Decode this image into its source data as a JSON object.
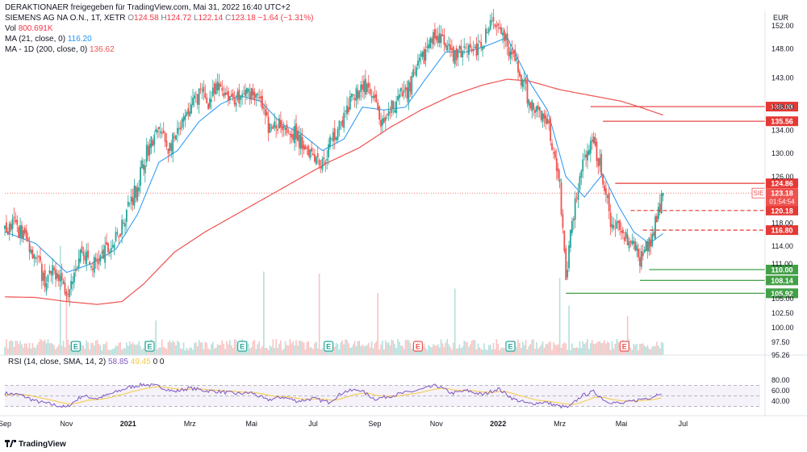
{
  "header": {
    "line1": "DERAKTIONAER freigegeben für TradingView.com, Mai 31, 2022 16:40 UTC+2",
    "line2_prefix": "SIEMENS AG NA O.N., 1T, XETR",
    "ohlc": {
      "O": "124.58",
      "H": "124.72",
      "L": "122.14",
      "C": "123.18",
      "chg": "−1.64 (−1.31%)"
    },
    "vol_label": "Vol",
    "vol_value": "800.691K",
    "ma1_label": "MA (21, close, 0)",
    "ma1_value": "116.20",
    "ma2_label": "MA - 1D (200, close, 0)",
    "ma2_value": "136.62"
  },
  "rsi_header": {
    "label": "RSI (14, close, SMA, 14, 2)",
    "value1": "58.85",
    "value2": "49.45",
    "value3": "0",
    "value4": "0"
  },
  "footer": {
    "brand": "TradingView"
  },
  "colors": {
    "up": "#26a69a",
    "down": "#ef5350",
    "ma21": "#2196f3",
    "ma200": "#ef5350",
    "rsi": "#7e57c2",
    "rsi_ma": "#f5c842",
    "red_level": "#e53935",
    "green_level": "#43a047"
  },
  "chart_data": {
    "type": "candlestick",
    "currency": "EUR",
    "price_axis_ticks": [
      152.0,
      148.0,
      143.0,
      138.0,
      134.0,
      130.0,
      126.0,
      118.0,
      114.0,
      111.0,
      105.0,
      102.5,
      100.0,
      97.5,
      95.26
    ],
    "time_axis_labels": [
      "Sep",
      "Nov",
      "2021",
      "Mrz",
      "Mai",
      "Jul",
      "Sep",
      "Nov",
      "2022",
      "Mrz",
      "Mai",
      "Jul"
    ],
    "time_axis_month_index": [
      0,
      2,
      4,
      6,
      8,
      10,
      12,
      14,
      16,
      18,
      20,
      22
    ],
    "price_anchors": [
      {
        "m": 0.0,
        "p": 116.5
      },
      {
        "m": 0.3,
        "p": 117.8
      },
      {
        "m": 0.6,
        "p": 116.0
      },
      {
        "m": 1.0,
        "p": 112.5
      },
      {
        "m": 1.3,
        "p": 108.0
      },
      {
        "m": 1.7,
        "p": 110.0
      },
      {
        "m": 2.0,
        "p": 106.5
      },
      {
        "m": 2.2,
        "p": 109.5
      },
      {
        "m": 2.5,
        "p": 113.5
      },
      {
        "m": 2.8,
        "p": 110.5
      },
      {
        "m": 3.2,
        "p": 112.5
      },
      {
        "m": 3.6,
        "p": 115.0
      },
      {
        "m": 4.0,
        "p": 121.0
      },
      {
        "m": 4.3,
        "p": 124.5
      },
      {
        "m": 4.6,
        "p": 130.5
      },
      {
        "m": 5.0,
        "p": 134.0
      },
      {
        "m": 5.3,
        "p": 131.0
      },
      {
        "m": 5.6,
        "p": 133.0
      },
      {
        "m": 6.0,
        "p": 137.5
      },
      {
        "m": 6.3,
        "p": 140.5
      },
      {
        "m": 6.6,
        "p": 139.0
      },
      {
        "m": 7.0,
        "p": 141.5
      },
      {
        "m": 7.3,
        "p": 140.0
      },
      {
        "m": 7.6,
        "p": 139.5
      },
      {
        "m": 8.0,
        "p": 141.0
      },
      {
        "m": 8.3,
        "p": 138.5
      },
      {
        "m": 8.6,
        "p": 134.0
      },
      {
        "m": 9.0,
        "p": 135.5
      },
      {
        "m": 9.3,
        "p": 134.0
      },
      {
        "m": 9.6,
        "p": 132.0
      },
      {
        "m": 10.0,
        "p": 130.5
      },
      {
        "m": 10.3,
        "p": 128.0
      },
      {
        "m": 10.6,
        "p": 132.5
      },
      {
        "m": 11.0,
        "p": 136.0
      },
      {
        "m": 11.3,
        "p": 139.5
      },
      {
        "m": 11.6,
        "p": 142.0
      },
      {
        "m": 12.0,
        "p": 138.5
      },
      {
        "m": 12.3,
        "p": 134.0
      },
      {
        "m": 12.6,
        "p": 138.5
      },
      {
        "m": 13.0,
        "p": 140.5
      },
      {
        "m": 13.3,
        "p": 143.5
      },
      {
        "m": 13.6,
        "p": 147.0
      },
      {
        "m": 14.0,
        "p": 151.0
      },
      {
        "m": 14.3,
        "p": 148.0
      },
      {
        "m": 14.6,
        "p": 146.5
      },
      {
        "m": 15.0,
        "p": 149.0
      },
      {
        "m": 15.3,
        "p": 147.5
      },
      {
        "m": 15.6,
        "p": 150.5
      },
      {
        "m": 16.0,
        "p": 153.5
      },
      {
        "m": 16.3,
        "p": 149.0
      },
      {
        "m": 16.6,
        "p": 145.0
      },
      {
        "m": 17.0,
        "p": 139.0
      },
      {
        "m": 17.3,
        "p": 137.5
      },
      {
        "m": 17.6,
        "p": 136.0
      },
      {
        "m": 18.0,
        "p": 125.0
      },
      {
        "m": 18.2,
        "p": 108.5
      },
      {
        "m": 18.5,
        "p": 122.0
      },
      {
        "m": 18.8,
        "p": 129.0
      },
      {
        "m": 19.1,
        "p": 131.5
      },
      {
        "m": 19.4,
        "p": 126.0
      },
      {
        "m": 19.7,
        "p": 116.5
      },
      {
        "m": 20.0,
        "p": 117.5
      },
      {
        "m": 20.3,
        "p": 114.5
      },
      {
        "m": 20.6,
        "p": 112.0
      },
      {
        "m": 20.9,
        "p": 114.0
      },
      {
        "m": 21.2,
        "p": 120.5
      },
      {
        "m": 21.35,
        "p": 123.18
      }
    ],
    "ma21_anchors": [
      {
        "m": 0.0,
        "p": 116.5
      },
      {
        "m": 1.0,
        "p": 114.5
      },
      {
        "m": 2.0,
        "p": 109.5
      },
      {
        "m": 2.8,
        "p": 111.0
      },
      {
        "m": 3.6,
        "p": 113.5
      },
      {
        "m": 4.3,
        "p": 119.5
      },
      {
        "m": 5.0,
        "p": 128.5
      },
      {
        "m": 5.6,
        "p": 130.5
      },
      {
        "m": 6.3,
        "p": 135.5
      },
      {
        "m": 7.0,
        "p": 138.5
      },
      {
        "m": 7.6,
        "p": 140.0
      },
      {
        "m": 8.3,
        "p": 139.0
      },
      {
        "m": 9.0,
        "p": 135.0
      },
      {
        "m": 9.6,
        "p": 133.5
      },
      {
        "m": 10.3,
        "p": 130.5
      },
      {
        "m": 11.0,
        "p": 132.5
      },
      {
        "m": 11.6,
        "p": 138.0
      },
      {
        "m": 12.3,
        "p": 137.5
      },
      {
        "m": 13.0,
        "p": 138.0
      },
      {
        "m": 13.6,
        "p": 142.5
      },
      {
        "m": 14.3,
        "p": 147.5
      },
      {
        "m": 15.0,
        "p": 147.5
      },
      {
        "m": 15.6,
        "p": 148.5
      },
      {
        "m": 16.3,
        "p": 150.0
      },
      {
        "m": 17.0,
        "p": 142.5
      },
      {
        "m": 17.6,
        "p": 137.5
      },
      {
        "m": 18.2,
        "p": 126.0
      },
      {
        "m": 18.8,
        "p": 122.5
      },
      {
        "m": 19.4,
        "p": 126.5
      },
      {
        "m": 19.9,
        "p": 121.0
      },
      {
        "m": 20.4,
        "p": 116.5
      },
      {
        "m": 20.9,
        "p": 114.5
      },
      {
        "m": 21.35,
        "p": 116.2
      }
    ],
    "ma200_anchors": [
      {
        "m": 0.0,
        "p": 105.3
      },
      {
        "m": 1.0,
        "p": 105.2
      },
      {
        "m": 2.0,
        "p": 104.5
      },
      {
        "m": 3.0,
        "p": 104.0
      },
      {
        "m": 3.8,
        "p": 104.5
      },
      {
        "m": 4.5,
        "p": 107.5
      },
      {
        "m": 5.5,
        "p": 113.0
      },
      {
        "m": 6.5,
        "p": 116.5
      },
      {
        "m": 7.5,
        "p": 119.5
      },
      {
        "m": 8.5,
        "p": 122.5
      },
      {
        "m": 9.5,
        "p": 125.5
      },
      {
        "m": 10.5,
        "p": 128.5
      },
      {
        "m": 11.5,
        "p": 131.0
      },
      {
        "m": 12.5,
        "p": 134.5
      },
      {
        "m": 13.5,
        "p": 137.5
      },
      {
        "m": 14.5,
        "p": 140.0
      },
      {
        "m": 15.5,
        "p": 141.8
      },
      {
        "m": 16.3,
        "p": 142.8
      },
      {
        "m": 17.0,
        "p": 142.5
      },
      {
        "m": 18.0,
        "p": 141.0
      },
      {
        "m": 19.0,
        "p": 140.0
      },
      {
        "m": 20.0,
        "p": 139.0
      },
      {
        "m": 20.6,
        "p": 138.0
      },
      {
        "m": 21.35,
        "p": 136.62
      }
    ],
    "rsi_anchors": [
      {
        "m": 0.0,
        "v": 55
      },
      {
        "m": 0.5,
        "v": 52
      },
      {
        "m": 1.0,
        "v": 40
      },
      {
        "m": 1.5,
        "v": 34
      },
      {
        "m": 2.0,
        "v": 28
      },
      {
        "m": 2.5,
        "v": 50
      },
      {
        "m": 3.0,
        "v": 45
      },
      {
        "m": 3.5,
        "v": 55
      },
      {
        "m": 4.0,
        "v": 66
      },
      {
        "m": 4.5,
        "v": 72
      },
      {
        "m": 5.0,
        "v": 68
      },
      {
        "m": 5.5,
        "v": 58
      },
      {
        "m": 6.0,
        "v": 65
      },
      {
        "m": 6.5,
        "v": 60
      },
      {
        "m": 7.0,
        "v": 58
      },
      {
        "m": 7.5,
        "v": 54
      },
      {
        "m": 8.0,
        "v": 56
      },
      {
        "m": 8.5,
        "v": 42
      },
      {
        "m": 9.0,
        "v": 48
      },
      {
        "m": 9.5,
        "v": 40
      },
      {
        "m": 10.0,
        "v": 45
      },
      {
        "m": 10.5,
        "v": 38
      },
      {
        "m": 11.0,
        "v": 58
      },
      {
        "m": 11.5,
        "v": 62
      },
      {
        "m": 12.0,
        "v": 44
      },
      {
        "m": 12.5,
        "v": 50
      },
      {
        "m": 13.0,
        "v": 56
      },
      {
        "m": 13.5,
        "v": 62
      },
      {
        "m": 14.0,
        "v": 70
      },
      {
        "m": 14.5,
        "v": 55
      },
      {
        "m": 15.0,
        "v": 60
      },
      {
        "m": 15.5,
        "v": 52
      },
      {
        "m": 16.0,
        "v": 64
      },
      {
        "m": 16.5,
        "v": 44
      },
      {
        "m": 17.0,
        "v": 35
      },
      {
        "m": 17.5,
        "v": 38
      },
      {
        "m": 18.0,
        "v": 30
      },
      {
        "m": 18.3,
        "v": 28
      },
      {
        "m": 18.7,
        "v": 50
      },
      {
        "m": 19.1,
        "v": 58
      },
      {
        "m": 19.5,
        "v": 40
      },
      {
        "m": 20.0,
        "v": 35
      },
      {
        "m": 20.5,
        "v": 42
      },
      {
        "m": 21.0,
        "v": 48
      },
      {
        "m": 21.35,
        "v": 58.85
      }
    ],
    "volume_spikes": [
      {
        "m": 1.8,
        "k": 3.2
      },
      {
        "m": 2.0,
        "k": 2.0
      },
      {
        "m": 4.9,
        "k": 2.2
      },
      {
        "m": 8.4,
        "k": 3.2
      },
      {
        "m": 10.2,
        "k": 2.6
      },
      {
        "m": 12.1,
        "k": 2.0
      },
      {
        "m": 14.6,
        "k": 2.0
      },
      {
        "m": 18.0,
        "k": 3.5
      },
      {
        "m": 18.3,
        "k": 2.6
      },
      {
        "m": 20.2,
        "k": 2.2
      }
    ],
    "earnings_markers": [
      {
        "m": 2.3,
        "label": "E",
        "type": "up"
      },
      {
        "m": 4.7,
        "label": "E",
        "type": "up"
      },
      {
        "m": 7.7,
        "label": "E",
        "type": "up"
      },
      {
        "m": 10.5,
        "label": "E",
        "type": "up"
      },
      {
        "m": 13.4,
        "label": "E",
        "type": "down"
      },
      {
        "m": 16.4,
        "label": "E",
        "type": "up"
      },
      {
        "m": 20.1,
        "label": "E",
        "type": "down"
      }
    ],
    "levels": [
      {
        "price": 138.08,
        "label": "138.08",
        "color": "red",
        "style": "solid",
        "start_m": 19.0
      },
      {
        "price": 135.56,
        "label": "135.56",
        "color": "red",
        "style": "solid",
        "start_m": 19.4
      },
      {
        "price": 124.86,
        "label": "124.86",
        "color": "red",
        "style": "solid",
        "start_m": 19.8
      },
      {
        "price": 120.18,
        "label": "120.18",
        "color": "red",
        "style": "dashed",
        "start_m": 20.3
      },
      {
        "price": 116.8,
        "label": "116.80",
        "color": "red",
        "style": "dashed",
        "start_m": 20.7
      },
      {
        "price": 110.0,
        "label": "110.00",
        "color": "green",
        "style": "solid",
        "start_m": 20.9
      },
      {
        "price": 108.14,
        "label": "108.14",
        "color": "green",
        "style": "solid",
        "start_m": 20.6
      },
      {
        "price": 105.92,
        "label": "105.92",
        "color": "green",
        "style": "solid",
        "start_m": 18.2
      }
    ],
    "last_price": {
      "symbol": "SIE",
      "price": "123.18",
      "countdown": "01:54:54"
    },
    "rsi_axis_ticks": [
      80.0,
      60.0,
      40.0
    ],
    "rsi_band": [
      30,
      70
    ]
  }
}
